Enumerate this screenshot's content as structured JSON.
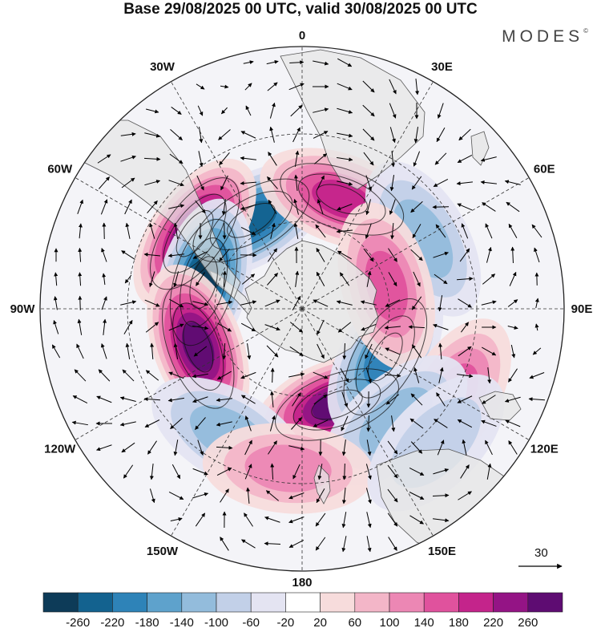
{
  "title": "Base 29/08/2025 00 UTC, valid 30/08/2025 00 UTC",
  "brand": "MODES",
  "brand_mark": "©",
  "map": {
    "projection": "south-polar-stereographic",
    "meridian_labels": [
      "0",
      "30E",
      "60E",
      "90E",
      "120E",
      "150E",
      "180",
      "150W",
      "120W",
      "90W",
      "60W",
      "30W"
    ],
    "land_color": "#e6e6e6",
    "anomaly_centers": [
      {
        "lon": -30,
        "lat": -55,
        "value": -220
      },
      {
        "lon": 20,
        "lat": -50,
        "value": 180
      },
      {
        "lon": -55,
        "lat": -45,
        "value": 260
      },
      {
        "lon": -75,
        "lat": -55,
        "value": -260
      },
      {
        "lon": -110,
        "lat": -52,
        "value": 260
      },
      {
        "lon": 160,
        "lat": -55,
        "value": 260
      },
      {
        "lon": 120,
        "lat": -57,
        "value": -200
      },
      {
        "lon": 60,
        "lat": -42,
        "value": -120
      },
      {
        "lon": 75,
        "lat": -60,
        "value": 140
      },
      {
        "lon": 120,
        "lat": -30,
        "value": 140
      },
      {
        "lon": 140,
        "lat": -40,
        "value": -100
      },
      {
        "lon": -150,
        "lat": -40,
        "value": -100
      },
      {
        "lon": -175,
        "lat": -35,
        "value": 120
      },
      {
        "lon": 135,
        "lat": -25,
        "value": -60
      }
    ]
  },
  "vector_key": {
    "value": "30"
  },
  "colorbar": {
    "colors": [
      "#0d3b58",
      "#13628f",
      "#2e83b8",
      "#5ea2cc",
      "#93bcdc",
      "#c2d0e8",
      "#e4e4f2",
      "#ffffff",
      "#f7dcdc",
      "#f3b6c8",
      "#ec87b4",
      "#e0529d",
      "#c4248b",
      "#941485",
      "#5e0c72"
    ],
    "ticks": [
      "-260",
      "-220",
      "-180",
      "-140",
      "-100",
      "-60",
      "-20",
      "20",
      "60",
      "100",
      "140",
      "180",
      "220",
      "260"
    ]
  }
}
